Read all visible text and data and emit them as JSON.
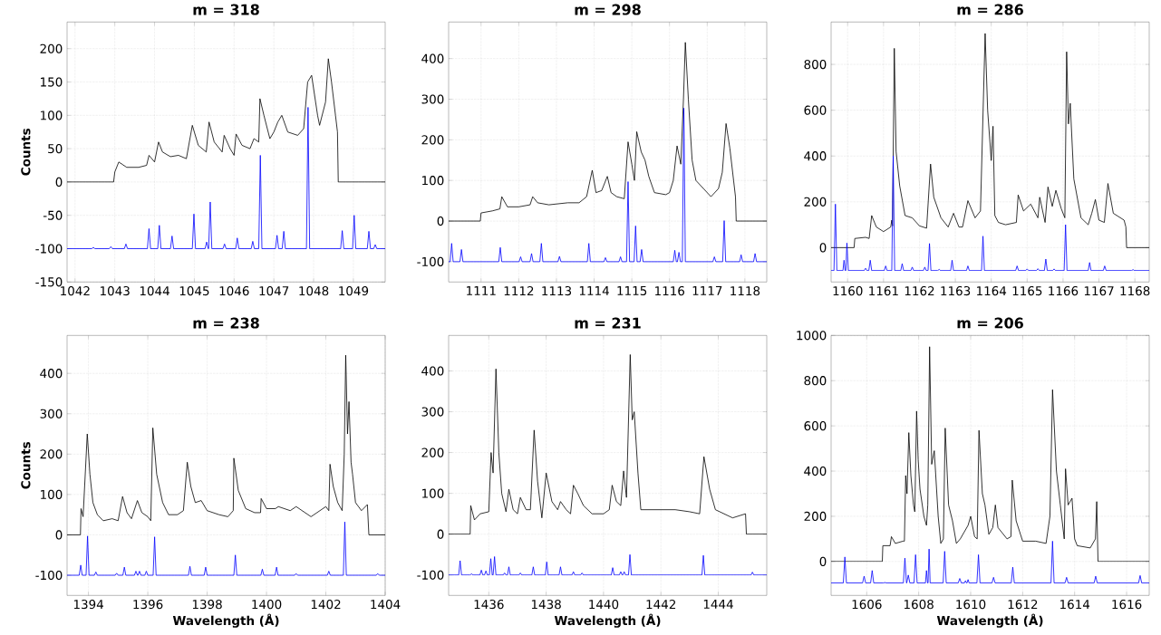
{
  "chart_data": [
    {
      "type": "line",
      "title": "m = 318",
      "ylabel": "Counts",
      "xlim": [
        1041.8,
        1049.8
      ],
      "ylim": [
        -150,
        240
      ],
      "xticks": [
        1042,
        1043,
        1044,
        1045,
        1046,
        1047,
        1048,
        1049
      ],
      "yticks": [
        -150,
        -100,
        -50,
        0,
        50,
        100,
        150,
        200
      ],
      "grid": true,
      "series": [
        {
          "color": "#000000",
          "x": [
            1041.8,
            1042.97,
            1043.0,
            1043.1,
            1043.3,
            1043.6,
            1043.8,
            1043.86,
            1044.0,
            1044.1,
            1044.2,
            1044.4,
            1044.6,
            1044.8,
            1044.95,
            1045.1,
            1045.3,
            1045.37,
            1045.5,
            1045.7,
            1045.75,
            1045.9,
            1046.0,
            1046.05,
            1046.2,
            1046.4,
            1046.5,
            1046.62,
            1046.65,
            1046.75,
            1046.9,
            1047.0,
            1047.1,
            1047.2,
            1047.35,
            1047.6,
            1047.75,
            1047.85,
            1047.95,
            1048.1,
            1048.15,
            1048.3,
            1048.37,
            1048.45,
            1048.55,
            1048.6,
            1048.62,
            1049.8
          ],
          "values": [
            0,
            0,
            15,
            30,
            22,
            22,
            25,
            40,
            30,
            60,
            45,
            38,
            40,
            35,
            85,
            55,
            45,
            90,
            60,
            45,
            70,
            50,
            40,
            72,
            55,
            50,
            65,
            60,
            125,
            100,
            65,
            75,
            90,
            100,
            75,
            70,
            80,
            150,
            160,
            100,
            85,
            120,
            185,
            150,
            100,
            75,
            0,
            0
          ]
        },
        {
          "color": "#0000ff",
          "x": [
            1041.8,
            1042.42,
            1042.46,
            1042.5,
            1042.86,
            1042.9,
            1042.94,
            1043.24,
            1043.28,
            1043.32,
            1043.82,
            1043.86,
            1043.9,
            1044.08,
            1044.12,
            1044.16,
            1044.4,
            1044.44,
            1044.48,
            1044.95,
            1044.99,
            1045.03,
            1045.27,
            1045.31,
            1045.35,
            1045.36,
            1045.4,
            1045.44,
            1045.72,
            1045.76,
            1045.8,
            1046.04,
            1046.08,
            1046.12,
            1046.43,
            1046.47,
            1046.51,
            1046.62,
            1046.66,
            1046.7,
            1047.04,
            1047.08,
            1047.12,
            1047.21,
            1047.25,
            1047.29,
            1047.82,
            1047.86,
            1047.9,
            1048.68,
            1048.72,
            1048.76,
            1048.98,
            1049.02,
            1049.06,
            1049.35,
            1049.39,
            1049.43,
            1049.51,
            1049.55,
            1049.59,
            1049.8
          ],
          "values": [
            -100,
            -100,
            -98,
            -100,
            -100,
            -97,
            -100,
            -100,
            -93,
            -100,
            -100,
            -70,
            -100,
            -100,
            -65,
            -100,
            -100,
            -81,
            -100,
            -100,
            -48,
            -100,
            -100,
            -90,
            -100,
            -100,
            -30,
            -100,
            -100,
            -93,
            -100,
            -100,
            -84,
            -100,
            -100,
            -89,
            -100,
            -100,
            40,
            -100,
            -100,
            -80,
            -100,
            -100,
            -74,
            -100,
            -100,
            112,
            -100,
            -100,
            -73,
            -100,
            -100,
            -50,
            -100,
            -100,
            -74,
            -100,
            -100,
            -94,
            -100,
            -100
          ]
        }
      ]
    },
    {
      "type": "line",
      "title": "m = 298",
      "xlim": [
        1110.14,
        1118.58
      ],
      "ylim": [
        -150,
        490
      ],
      "xticks": [
        1111,
        1112,
        1113,
        1114,
        1115,
        1116,
        1117,
        1118
      ],
      "yticks": [
        -100,
        0,
        100,
        200,
        300,
        400
      ],
      "grid": true,
      "series": [
        {
          "color": "#000000",
          "x": [
            1110.14,
            1110.98,
            1111.0,
            1111.3,
            1111.5,
            1111.55,
            1111.7,
            1112.0,
            1112.3,
            1112.37,
            1112.5,
            1112.8,
            1113.0,
            1113.3,
            1113.6,
            1113.8,
            1113.95,
            1114.05,
            1114.2,
            1114.35,
            1114.45,
            1114.6,
            1114.8,
            1114.9,
            1115.0,
            1115.07,
            1115.13,
            1115.25,
            1115.35,
            1115.45,
            1115.6,
            1115.9,
            1116.0,
            1116.1,
            1116.2,
            1116.3,
            1116.37,
            1116.42,
            1116.5,
            1116.6,
            1116.7,
            1116.9,
            1117.1,
            1117.3,
            1117.4,
            1117.5,
            1117.6,
            1117.7,
            1117.75,
            1117.77,
            1118.58
          ],
          "values": [
            0,
            0,
            20,
            25,
            30,
            60,
            35,
            35,
            40,
            60,
            45,
            40,
            42,
            45,
            45,
            60,
            125,
            70,
            75,
            110,
            70,
            60,
            55,
            195,
            140,
            100,
            220,
            170,
            150,
            110,
            70,
            65,
            70,
            100,
            185,
            140,
            300,
            440,
            300,
            150,
            100,
            80,
            60,
            80,
            120,
            240,
            180,
            100,
            60,
            0,
            0
          ]
        },
        {
          "color": "#0000ff",
          "x": [
            1110.14,
            1110.18,
            1110.22,
            1110.26,
            1110.44,
            1110.48,
            1110.52,
            1111.47,
            1111.51,
            1111.55,
            1112.01,
            1112.05,
            1112.09,
            1112.3,
            1112.34,
            1112.38,
            1112.56,
            1112.6,
            1112.64,
            1113.04,
            1113.08,
            1113.12,
            1113.82,
            1113.86,
            1113.9,
            1114.26,
            1114.3,
            1114.34,
            1114.66,
            1114.7,
            1114.74,
            1114.86,
            1114.9,
            1114.94,
            1115.06,
            1115.1,
            1115.14,
            1115.22,
            1115.26,
            1115.3,
            1116.1,
            1116.14,
            1116.18,
            1116.21,
            1116.25,
            1116.29,
            1116.34,
            1116.38,
            1116.42,
            1117.15,
            1117.19,
            1117.23,
            1117.41,
            1117.45,
            1117.49,
            1117.86,
            1117.9,
            1117.94,
            1118.23,
            1118.27,
            1118.31,
            1118.58
          ],
          "values": [
            -100,
            -100,
            -55,
            -100,
            -100,
            -70,
            -100,
            -100,
            -65,
            -100,
            -100,
            -88,
            -100,
            -100,
            -80,
            -100,
            -100,
            -55,
            -100,
            -100,
            -87,
            -100,
            -100,
            -55,
            -100,
            -100,
            -90,
            -100,
            -100,
            -88,
            -100,
            -100,
            97,
            -100,
            -100,
            -12,
            -100,
            -100,
            -70,
            -100,
            -100,
            -72,
            -100,
            -100,
            -77,
            -100,
            -100,
            278,
            -100,
            -100,
            -88,
            -100,
            -100,
            1,
            -100,
            -100,
            -83,
            -100,
            -100,
            -80,
            -100,
            -100
          ]
        }
      ]
    },
    {
      "type": "line",
      "title": "m = 286",
      "xlim": [
        1159.54,
        1168.4
      ],
      "ylim": [
        -150,
        985
      ],
      "xticks": [
        1160,
        1161,
        1162,
        1163,
        1164,
        1165,
        1166,
        1167,
        1168
      ],
      "yticks": [
        0,
        200,
        400,
        600,
        800
      ],
      "grid": true,
      "series": [
        {
          "color": "#000000",
          "x": [
            1159.54,
            1160.18,
            1160.2,
            1160.5,
            1160.6,
            1160.67,
            1160.8,
            1161.0,
            1161.2,
            1161.23,
            1161.25,
            1161.3,
            1161.35,
            1161.45,
            1161.6,
            1161.8,
            1162.0,
            1162.2,
            1162.31,
            1162.4,
            1162.6,
            1162.8,
            1162.95,
            1163.1,
            1163.2,
            1163.35,
            1163.55,
            1163.7,
            1163.83,
            1163.9,
            1164.0,
            1164.05,
            1164.1,
            1164.2,
            1164.4,
            1164.7,
            1164.75,
            1164.9,
            1165.1,
            1165.3,
            1165.35,
            1165.5,
            1165.58,
            1165.7,
            1165.8,
            1165.95,
            1166.05,
            1166.1,
            1166.15,
            1166.2,
            1166.3,
            1166.5,
            1166.7,
            1166.8,
            1166.9,
            1167.0,
            1167.15,
            1167.25,
            1167.4,
            1167.7,
            1167.75,
            1167.77,
            1168.4
          ],
          "values": [
            0,
            0,
            40,
            45,
            40,
            140,
            90,
            70,
            90,
            120,
            95,
            870,
            420,
            270,
            140,
            130,
            95,
            85,
            365,
            220,
            130,
            90,
            150,
            90,
            90,
            205,
            130,
            160,
            935,
            600,
            380,
            530,
            140,
            110,
            100,
            110,
            230,
            160,
            190,
            130,
            220,
            110,
            265,
            180,
            250,
            170,
            130,
            855,
            540,
            630,
            300,
            130,
            100,
            150,
            210,
            120,
            110,
            280,
            150,
            120,
            90,
            0,
            0
          ]
        },
        {
          "color": "#0000ff",
          "x": [
            1159.54,
            1159.62,
            1159.66,
            1159.7,
            1159.87,
            1159.9,
            1159.93,
            1159.95,
            1159.98,
            1160.02,
            1160.46,
            1160.5,
            1160.54,
            1160.59,
            1160.63,
            1160.67,
            1161.02,
            1161.06,
            1161.1,
            1161.23,
            1161.27,
            1161.31,
            1161.48,
            1161.52,
            1161.56,
            1161.76,
            1161.8,
            1161.84,
            1162.11,
            1162.15,
            1162.19,
            1162.24,
            1162.28,
            1162.32,
            1162.51,
            1162.55,
            1162.59,
            1162.87,
            1162.91,
            1162.95,
            1163.31,
            1163.35,
            1163.39,
            1163.73,
            1163.77,
            1163.81,
            1164.68,
            1164.72,
            1164.76,
            1164.96,
            1165.0,
            1165.04,
            1165.26,
            1165.3,
            1165.34,
            1165.48,
            1165.52,
            1165.56,
            1165.71,
            1165.75,
            1165.79,
            1166.03,
            1166.07,
            1166.11,
            1166.7,
            1166.74,
            1166.78,
            1167.12,
            1167.16,
            1167.2,
            1167.91,
            1167.95,
            1167.99,
            1168.4
          ],
          "values": [
            -100,
            -100,
            190,
            -100,
            -100,
            -55,
            -100,
            -100,
            20,
            -100,
            -100,
            -90,
            -100,
            -100,
            -55,
            -100,
            -100,
            -80,
            -100,
            -100,
            400,
            -100,
            -100,
            -70,
            -100,
            -100,
            -85,
            -100,
            -100,
            -85,
            -100,
            -100,
            18,
            -100,
            -100,
            -95,
            -100,
            -100,
            -55,
            -100,
            -100,
            -80,
            -100,
            -100,
            50,
            -100,
            -100,
            -80,
            -100,
            -100,
            -93,
            -100,
            -100,
            -92,
            -100,
            -100,
            -50,
            -100,
            -100,
            -93,
            -100,
            -100,
            100,
            -100,
            -100,
            -65,
            -100,
            -100,
            -80,
            -100,
            -100,
            -96,
            -100,
            -100
          ]
        }
      ]
    },
    {
      "type": "line",
      "title": "m = 238",
      "xlabel": "Wavelength (Å)",
      "ylabel": "Counts",
      "xlim": [
        1393.28,
        1404
      ],
      "ylim": [
        -150,
        494
      ],
      "xticks": [
        1394,
        1396,
        1398,
        1400,
        1402,
        1404
      ],
      "yticks": [
        -100,
        0,
        100,
        200,
        300,
        400
      ],
      "grid": true,
      "series": [
        {
          "color": "#000000",
          "x": [
            1393.28,
            1393.73,
            1393.75,
            1393.82,
            1393.96,
            1394.05,
            1394.15,
            1394.3,
            1394.5,
            1394.8,
            1395.0,
            1395.15,
            1395.3,
            1395.45,
            1395.65,
            1395.8,
            1396.0,
            1396.1,
            1396.17,
            1396.3,
            1396.5,
            1396.7,
            1397.0,
            1397.2,
            1397.33,
            1397.45,
            1397.6,
            1397.8,
            1398.0,
            1398.4,
            1398.7,
            1398.88,
            1398.9,
            1399.05,
            1399.3,
            1399.6,
            1399.8,
            1399.82,
            1400.0,
            1400.3,
            1400.4,
            1400.8,
            1401.0,
            1401.5,
            1401.8,
            1402.0,
            1402.1,
            1402.14,
            1402.25,
            1402.4,
            1402.55,
            1402.62,
            1402.67,
            1402.73,
            1402.78,
            1402.85,
            1402.9,
            1403.0,
            1403.2,
            1403.4,
            1403.45,
            1404
          ],
          "values": [
            0,
            0,
            65,
            45,
            250,
            150,
            80,
            50,
            35,
            40,
            35,
            95,
            55,
            40,
            85,
            55,
            45,
            35,
            265,
            150,
            80,
            50,
            50,
            60,
            180,
            120,
            80,
            85,
            60,
            50,
            45,
            60,
            190,
            110,
            65,
            55,
            55,
            90,
            65,
            65,
            70,
            60,
            70,
            45,
            60,
            70,
            60,
            175,
            120,
            80,
            60,
            200,
            445,
            250,
            330,
            180,
            150,
            80,
            60,
            75,
            0,
            0
          ]
        },
        {
          "color": "#0000ff",
          "x": [
            1393.28,
            1393.69,
            1393.74,
            1393.79,
            1393.92,
            1393.97,
            1394.02,
            1394.2,
            1394.25,
            1394.3,
            1394.9,
            1394.95,
            1395.0,
            1395.16,
            1395.21,
            1395.26,
            1395.55,
            1395.6,
            1395.65,
            1395.67,
            1395.72,
            1395.77,
            1395.9,
            1395.95,
            1396.0,
            1396.18,
            1396.23,
            1396.28,
            1397.37,
            1397.42,
            1397.47,
            1397.9,
            1397.95,
            1398.0,
            1398.9,
            1398.95,
            1399.0,
            1399.81,
            1399.86,
            1399.91,
            1400.29,
            1400.34,
            1400.39,
            1400.95,
            1401.0,
            1401.05,
            1402.05,
            1402.1,
            1402.15,
            1402.59,
            1402.64,
            1402.69,
            1403.7,
            1403.75,
            1403.8,
            1404
          ],
          "values": [
            -100,
            -100,
            -75,
            -100,
            -100,
            -3,
            -100,
            -100,
            -92,
            -100,
            -100,
            -95,
            -100,
            -100,
            -80,
            -100,
            -100,
            -90,
            -100,
            -100,
            -90,
            -100,
            -100,
            -90,
            -100,
            -100,
            -5,
            -100,
            -100,
            -78,
            -100,
            -100,
            -80,
            -100,
            -100,
            -50,
            -100,
            -100,
            -85,
            -100,
            -100,
            -80,
            -100,
            -100,
            -96,
            -100,
            -100,
            -90,
            -100,
            -100,
            32,
            -100,
            -100,
            -96,
            -100,
            -100
          ]
        }
      ]
    },
    {
      "type": "line",
      "title": "m = 231",
      "xlabel": "Wavelength (Å)",
      "xlim": [
        1434.6,
        1445.69
      ],
      "ylim": [
        -150,
        487
      ],
      "xticks": [
        1436,
        1438,
        1440,
        1442,
        1444
      ],
      "yticks": [
        -100,
        0,
        100,
        200,
        300,
        400
      ],
      "grid": true,
      "series": [
        {
          "color": "#000000",
          "x": [
            1434.6,
            1435.35,
            1435.37,
            1435.5,
            1435.7,
            1436.0,
            1436.08,
            1436.15,
            1436.25,
            1436.35,
            1436.45,
            1436.6,
            1436.7,
            1436.85,
            1437.0,
            1437.1,
            1437.3,
            1437.45,
            1437.58,
            1437.7,
            1437.85,
            1438.0,
            1438.2,
            1438.4,
            1438.5,
            1438.7,
            1438.85,
            1438.95,
            1439.1,
            1439.3,
            1439.6,
            1440.0,
            1440.2,
            1440.3,
            1440.45,
            1440.6,
            1440.7,
            1440.8,
            1440.93,
            1441.0,
            1441.07,
            1441.2,
            1441.3,
            1441.8,
            1442.5,
            1443.0,
            1443.35,
            1443.5,
            1443.7,
            1443.9,
            1444.2,
            1444.5,
            1444.95,
            1444.98,
            1445.69
          ],
          "values": [
            0,
            0,
            70,
            35,
            50,
            55,
            200,
            150,
            405,
            200,
            100,
            55,
            110,
            60,
            50,
            90,
            60,
            60,
            255,
            130,
            40,
            150,
            80,
            60,
            80,
            60,
            50,
            120,
            100,
            70,
            50,
            50,
            60,
            120,
            80,
            70,
            155,
            90,
            440,
            280,
            300,
            150,
            60,
            60,
            60,
            55,
            50,
            190,
            110,
            60,
            50,
            40,
            50,
            0,
            0
          ]
        },
        {
          "color": "#0000ff",
          "x": [
            1434.6,
            1434.95,
            1435.0,
            1435.05,
            1435.35,
            1435.4,
            1435.45,
            1435.69,
            1435.74,
            1435.79,
            1435.85,
            1435.9,
            1435.95,
            1436.02,
            1436.07,
            1436.12,
            1436.15,
            1436.2,
            1436.25,
            1436.5,
            1436.55,
            1436.6,
            1436.65,
            1436.7,
            1436.75,
            1437.05,
            1437.1,
            1437.15,
            1437.5,
            1437.55,
            1437.6,
            1437.97,
            1438.02,
            1438.07,
            1438.45,
            1438.5,
            1438.55,
            1438.9,
            1438.95,
            1439.0,
            1439.2,
            1439.25,
            1439.3,
            1440.27,
            1440.32,
            1440.37,
            1440.55,
            1440.6,
            1440.65,
            1440.67,
            1440.72,
            1440.77,
            1440.87,
            1440.92,
            1440.97,
            1443.43,
            1443.48,
            1443.53,
            1445.14,
            1445.19,
            1445.24,
            1445.69
          ],
          "values": [
            -100,
            -100,
            -65,
            -100,
            -100,
            -97,
            -100,
            -100,
            -88,
            -100,
            -100,
            -90,
            -100,
            -100,
            -60,
            -100,
            -100,
            -55,
            -100,
            -100,
            -95,
            -100,
            -100,
            -80,
            -100,
            -100,
            -95,
            -100,
            -100,
            -80,
            -100,
            -100,
            -68,
            -100,
            -100,
            -80,
            -100,
            -100,
            -92,
            -100,
            -100,
            -95,
            -100,
            -100,
            -82,
            -100,
            -100,
            -92,
            -100,
            -100,
            -92,
            -100,
            -100,
            -50,
            -100,
            -100,
            -52,
            -100,
            -100,
            -93,
            -100,
            -100
          ]
        }
      ]
    },
    {
      "type": "line",
      "title": "m = 206",
      "xlabel": "Wavelength (Å)",
      "xlim": [
        1604.63,
        1616.87
      ],
      "ylim": [
        -150,
        1000
      ],
      "xticks": [
        1606,
        1608,
        1610,
        1612,
        1614,
        1616
      ],
      "yticks": [
        0,
        200,
        400,
        600,
        800,
        1000
      ],
      "grid": true,
      "series": [
        {
          "color": "#000000",
          "x": [
            1604.63,
            1606.6,
            1606.62,
            1606.9,
            1606.95,
            1607.1,
            1607.4,
            1607.45,
            1607.5,
            1607.55,
            1607.62,
            1607.7,
            1607.8,
            1607.85,
            1607.92,
            1607.98,
            1608.05,
            1608.2,
            1608.3,
            1608.35,
            1608.42,
            1608.5,
            1608.6,
            1608.75,
            1608.85,
            1608.95,
            1609.02,
            1609.15,
            1609.3,
            1609.45,
            1609.6,
            1609.9,
            1610.0,
            1610.15,
            1610.25,
            1610.32,
            1610.45,
            1610.55,
            1610.7,
            1610.85,
            1610.95,
            1611.05,
            1611.4,
            1611.55,
            1611.6,
            1611.75,
            1612.0,
            1612.5,
            1612.9,
            1613.05,
            1613.15,
            1613.3,
            1613.45,
            1613.6,
            1613.65,
            1613.75,
            1613.9,
            1614.0,
            1614.1,
            1614.6,
            1614.8,
            1614.85,
            1614.9,
            1616.87
          ],
          "values": [
            0,
            0,
            70,
            70,
            110,
            80,
            90,
            90,
            380,
            300,
            570,
            380,
            250,
            220,
            665,
            450,
            320,
            200,
            160,
            250,
            950,
            430,
            490,
            200,
            80,
            100,
            590,
            250,
            180,
            80,
            100,
            160,
            200,
            110,
            100,
            580,
            300,
            250,
            120,
            150,
            250,
            150,
            100,
            110,
            360,
            180,
            90,
            90,
            80,
            200,
            760,
            400,
            250,
            100,
            410,
            250,
            280,
            100,
            70,
            60,
            100,
            265,
            0,
            0
          ]
        },
        {
          "color": "#0000ff",
          "x": [
            1604.63,
            1605.1,
            1605.16,
            1605.22,
            1605.84,
            1605.9,
            1605.96,
            1606.15,
            1606.21,
            1606.27,
            1606.64,
            1606.7,
            1606.76,
            1607.41,
            1607.47,
            1607.53,
            1607.54,
            1607.6,
            1607.66,
            1607.82,
            1607.88,
            1607.94,
            1608.26,
            1608.3,
            1608.34,
            1608.36,
            1608.4,
            1608.44,
            1608.94,
            1609.0,
            1609.06,
            1609.52,
            1609.58,
            1609.64,
            1609.76,
            1609.8,
            1609.84,
            1609.86,
            1609.9,
            1609.94,
            1610.24,
            1610.3,
            1610.36,
            1610.82,
            1610.88,
            1610.94,
            1611.56,
            1611.62,
            1611.68,
            1613.09,
            1613.15,
            1613.21,
            1613.63,
            1613.69,
            1613.75,
            1614.75,
            1614.81,
            1614.87,
            1616.46,
            1616.52,
            1616.58,
            1616.87
          ],
          "values": [
            -95,
            -95,
            20,
            -95,
            -95,
            -65,
            -95,
            -95,
            -40,
            -95,
            -95,
            -93,
            -95,
            -95,
            15,
            -95,
            -95,
            -60,
            -95,
            -95,
            30,
            -95,
            -95,
            -40,
            -95,
            -95,
            55,
            -95,
            -95,
            45,
            -95,
            -95,
            -75,
            -95,
            -95,
            -85,
            -95,
            -95,
            -80,
            -95,
            -95,
            30,
            -95,
            -95,
            -70,
            -95,
            -95,
            -25,
            -95,
            -95,
            90,
            -95,
            -95,
            -70,
            -95,
            -95,
            -65,
            -95,
            -95,
            -62,
            -95,
            -95
          ]
        }
      ]
    }
  ]
}
